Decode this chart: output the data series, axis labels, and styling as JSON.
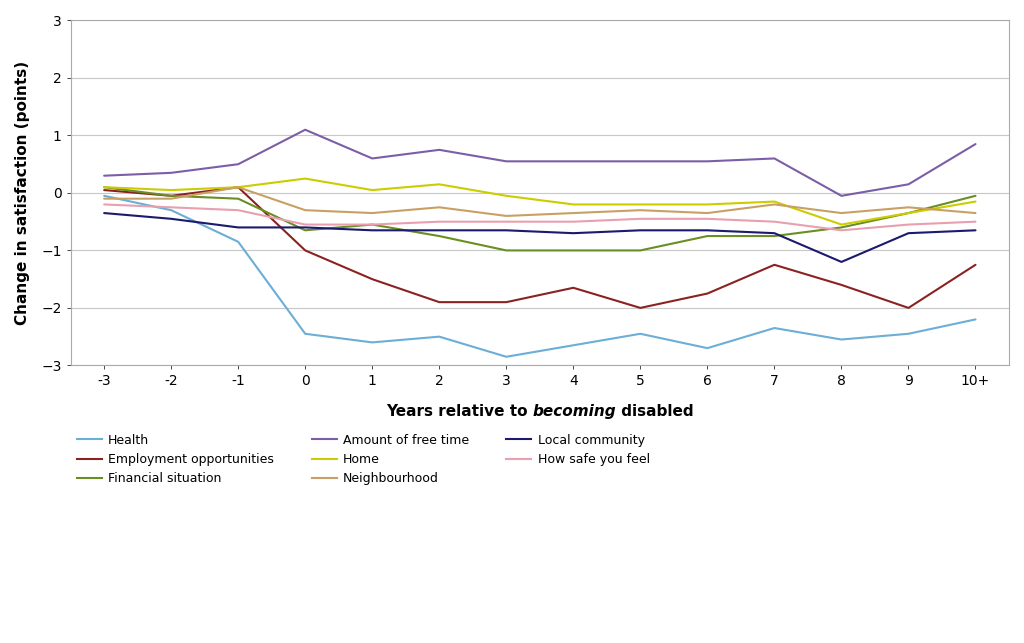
{
  "x_labels": [
    "-3",
    "-2",
    "-1",
    "0",
    "1",
    "2",
    "3",
    "4",
    "5",
    "6",
    "7",
    "8",
    "9",
    "10+"
  ],
  "x_values": [
    -3,
    -2,
    -1,
    0,
    1,
    2,
    3,
    4,
    5,
    6,
    7,
    8,
    9,
    10
  ],
  "series": [
    {
      "name": "Health",
      "color": "#6baed6",
      "values": [
        -0.05,
        -0.3,
        -0.85,
        -2.45,
        -2.6,
        -2.5,
        -2.85,
        -2.65,
        -2.45,
        -2.7,
        -2.35,
        -2.55,
        -2.45,
        -2.2
      ]
    },
    {
      "name": "Employment opportunities",
      "color": "#8b2222",
      "values": [
        0.05,
        -0.05,
        0.1,
        -1.0,
        -1.5,
        -1.9,
        -1.9,
        -1.65,
        -2.0,
        -1.75,
        -1.25,
        -1.6,
        -2.0,
        -1.25
      ]
    },
    {
      "name": "Financial situation",
      "color": "#6b8e23",
      "values": [
        0.1,
        -0.05,
        -0.1,
        -0.65,
        -0.55,
        -0.75,
        -1.0,
        -1.0,
        -1.0,
        -0.75,
        -0.75,
        -0.6,
        -0.35,
        -0.05
      ]
    },
    {
      "name": "Amount of free time",
      "color": "#7b5ea7",
      "values": [
        0.3,
        0.35,
        0.5,
        1.1,
        0.6,
        0.75,
        0.55,
        0.55,
        0.55,
        0.55,
        0.6,
        -0.05,
        0.15,
        0.85
      ]
    },
    {
      "name": "Home",
      "color": "#cccc00",
      "values": [
        0.1,
        0.05,
        0.1,
        0.25,
        0.05,
        0.15,
        -0.05,
        -0.2,
        -0.2,
        -0.2,
        -0.15,
        -0.55,
        -0.35,
        -0.15
      ]
    },
    {
      "name": "Neighbourhood",
      "color": "#c8a064",
      "values": [
        -0.1,
        -0.1,
        0.1,
        -0.3,
        -0.35,
        -0.25,
        -0.4,
        -0.35,
        -0.3,
        -0.35,
        -0.2,
        -0.35,
        -0.25,
        -0.35
      ]
    },
    {
      "name": "Local community",
      "color": "#1a1a6e",
      "values": [
        -0.35,
        -0.45,
        -0.6,
        -0.6,
        -0.65,
        -0.65,
        -0.65,
        -0.7,
        -0.65,
        -0.65,
        -0.7,
        -1.2,
        -0.7,
        -0.65
      ]
    },
    {
      "name": "How safe you feel",
      "color": "#e8a0b0",
      "values": [
        -0.2,
        -0.25,
        -0.3,
        -0.55,
        -0.55,
        -0.5,
        -0.5,
        -0.5,
        -0.45,
        -0.45,
        -0.5,
        -0.65,
        -0.55,
        -0.5
      ]
    }
  ],
  "ylabel": "Change in satisfaction (points)",
  "xlabel_normal1": "Years relative to ",
  "xlabel_italic": "becoming",
  "xlabel_normal2": " disabled",
  "ylim": [
    -3.0,
    3.0
  ],
  "yticks": [
    -3,
    -2,
    -1,
    0,
    1,
    2,
    3
  ],
  "background_color": "#ffffff",
  "grid_color": "#c8c8c8",
  "axis_fontsize": 11,
  "tick_fontsize": 10,
  "legend_fontsize": 9,
  "linewidth": 1.5,
  "legend_order": [
    "Health",
    "Employment opportunities",
    "Financial situation",
    "Amount of free time",
    "Home",
    "Neighbourhood",
    "Local community",
    "How safe you feel"
  ]
}
